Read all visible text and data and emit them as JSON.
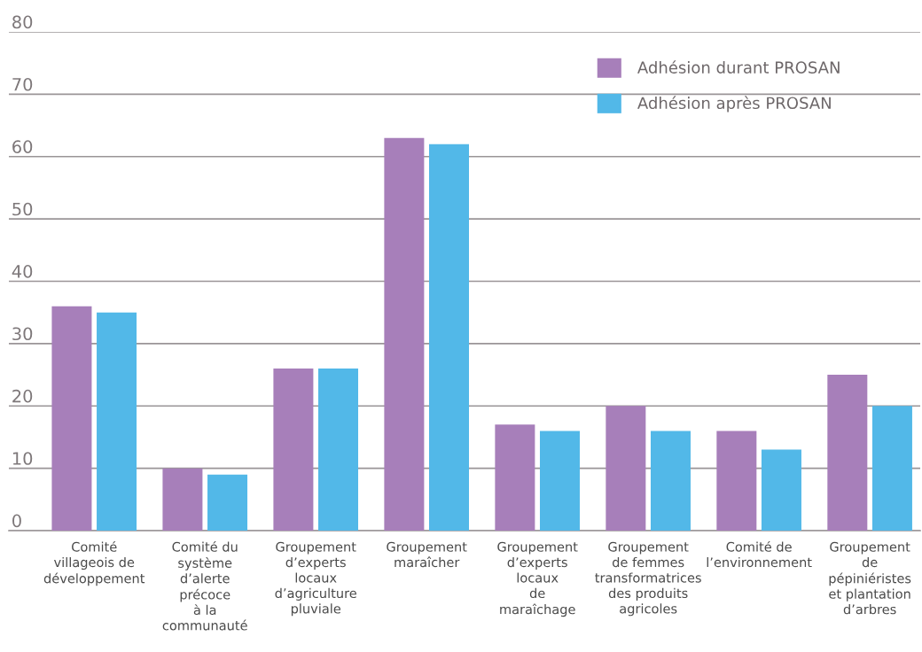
{
  "chart_data": {
    "type": "bar",
    "categories": [
      "Comité\nvillageois de\ndéveloppement",
      "Comité du\nsystème\nd’alerte\nprécoce\nà la\ncommunauté",
      "Groupement\nd’experts\nlocaux\nd’agriculture\npluviale",
      "Groupement\nmaraîcher",
      "Groupement\nd’experts\nlocaux\nde\nmaraîchage",
      "Groupement\nde femmes\ntransformatrices\ndes produits\nagricoles",
      "Comité de\nl’environnement",
      "Groupement\nde\npépiniéristes\net plantation\nd’arbres"
    ],
    "series": [
      {
        "name": "Adhésion durant PROSAN",
        "color": "#a77fba",
        "values": [
          36,
          10,
          26,
          63,
          17,
          20,
          16,
          25
        ]
      },
      {
        "name": "Adhésion après PROSAN",
        "color": "#52b8e8",
        "values": [
          35,
          9,
          26,
          62,
          16,
          16,
          13,
          20
        ]
      }
    ],
    "ylim": [
      0,
      80
    ],
    "yticks": [
      0,
      10,
      20,
      30,
      40,
      50,
      60,
      70,
      80
    ],
    "grid": "y",
    "legend": "top right"
  }
}
